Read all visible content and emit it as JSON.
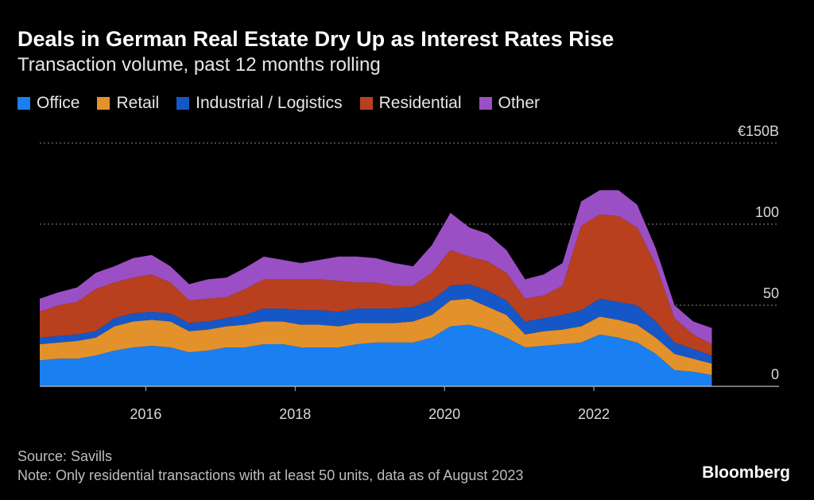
{
  "chart_data": {
    "type": "stacked_area",
    "title": "Deals in German Real Estate Dry Up as Interest Rates Rise",
    "subtitle": "Transaction volume, past 12 months rolling",
    "source": "Source: Savills",
    "note": "Note: Only residential transactions with at least 50 units, data as of August 2023",
    "brand": "Bloomberg",
    "x": [
      2014.58,
      2014.83,
      2015.08,
      2015.33,
      2015.58,
      2015.83,
      2016.08,
      2016.33,
      2016.58,
      2016.83,
      2017.08,
      2017.33,
      2017.58,
      2017.83,
      2018.08,
      2018.33,
      2018.58,
      2018.83,
      2019.08,
      2019.33,
      2019.58,
      2019.83,
      2020.08,
      2020.33,
      2020.58,
      2020.83,
      2021.08,
      2021.33,
      2021.58,
      2021.83,
      2022.08,
      2022.33,
      2022.58,
      2022.83,
      2023.08,
      2023.33,
      2023.58
    ],
    "series": [
      {
        "name": "Office",
        "color": "#1a7ff0",
        "values": [
          16,
          17,
          17,
          19,
          22,
          24,
          25,
          24,
          21,
          22,
          24,
          24,
          26,
          26,
          24,
          24,
          24,
          26,
          27,
          27,
          27,
          30,
          37,
          38,
          35,
          30,
          24,
          25,
          26,
          27,
          32,
          30,
          27,
          20,
          10,
          9,
          7
        ]
      },
      {
        "name": "Retail",
        "color": "#e3912b",
        "values": [
          10,
          10,
          11,
          11,
          15,
          16,
          16,
          16,
          13,
          13,
          13,
          14,
          14,
          14,
          14,
          14,
          13,
          13,
          12,
          12,
          13,
          14,
          16,
          16,
          14,
          14,
          8,
          9,
          9,
          10,
          11,
          11,
          11,
          10,
          10,
          8,
          7
        ]
      },
      {
        "name": "Industrial / Logistics",
        "color": "#1657c8",
        "values": [
          4,
          4,
          4,
          4,
          5,
          5,
          5,
          5,
          5,
          5,
          5,
          6,
          8,
          8,
          9,
          9,
          9,
          9,
          9,
          9,
          9,
          9,
          9,
          9,
          10,
          9,
          8,
          8,
          9,
          10,
          11,
          11,
          12,
          10,
          7,
          6,
          5
        ]
      },
      {
        "name": "Residential",
        "color": "#b8401f",
        "values": [
          16,
          19,
          20,
          26,
          22,
          22,
          23,
          19,
          14,
          14,
          13,
          16,
          18,
          18,
          19,
          19,
          19,
          16,
          16,
          14,
          13,
          17,
          22,
          17,
          18,
          17,
          14,
          14,
          18,
          52,
          52,
          53,
          48,
          35,
          15,
          9,
          7
        ]
      },
      {
        "name": "Other",
        "color": "#9b4fc4",
        "values": [
          8,
          8,
          9,
          10,
          10,
          12,
          12,
          10,
          10,
          12,
          12,
          13,
          14,
          12,
          10,
          12,
          15,
          16,
          15,
          14,
          12,
          17,
          23,
          18,
          17,
          14,
          12,
          13,
          14,
          15,
          15,
          16,
          14,
          10,
          8,
          8,
          10
        ]
      }
    ],
    "xlim": [
      2014.58,
      2024.48
    ],
    "xticks": [
      2016,
      2018,
      2020,
      2022
    ],
    "ylim": [
      0,
      150
    ],
    "yticks": [
      0,
      50,
      100,
      {
        "value": 150,
        "label": "€150B"
      }
    ],
    "grid": true
  }
}
